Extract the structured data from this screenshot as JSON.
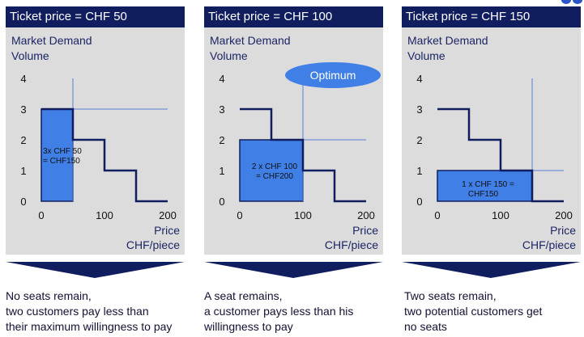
{
  "panels": [
    {
      "header": "Ticket price = CHF 50",
      "ylabel_line1": "Market Demand",
      "ylabel_line2": "Volume",
      "yticks": [
        "0",
        "1",
        "2",
        "3",
        "4"
      ],
      "xticks": [
        "0",
        "100",
        "200"
      ],
      "xlabel_line1": "Price",
      "xlabel_line2": "CHF/piece",
      "box_label_line1": "3x CHF 50",
      "box_label_line2": "= CHF150",
      "badge": "",
      "description": [
        "No seats remain,",
        "two customers pay less than",
        "their maximum willingness to pay"
      ]
    },
    {
      "header": "Ticket price = CHF 100",
      "ylabel_line1": "Market Demand",
      "ylabel_line2": "Volume",
      "yticks": [
        "0",
        "1",
        "2",
        "3",
        "4"
      ],
      "xticks": [
        "0",
        "100",
        "200"
      ],
      "xlabel_line1": "Price",
      "xlabel_line2": "CHF/piece",
      "box_label_line1": "2 x CHF 100",
      "box_label_line2": "= CHF200",
      "badge": "Optimum",
      "description": [
        "A seat remains,",
        "a customer pays less than his",
        "willingness to pay"
      ]
    },
    {
      "header": "Ticket price = CHF 150",
      "ylabel_line1": "Market Demand",
      "ylabel_line2": "Volume",
      "yticks": [
        "0",
        "1",
        "2",
        "3",
        "4"
      ],
      "xticks": [
        "0",
        "100",
        "200"
      ],
      "xlabel_line1": "Price",
      "xlabel_line2": "CHF/piece",
      "box_label_line1": "1 x CHF 150 =",
      "box_label_line2": "CHF150",
      "badge": "",
      "description": [
        "Two seats remain,",
        "two potential customers get",
        "no seats"
      ]
    }
  ],
  "chart_data": [
    {
      "type": "area",
      "title": "Ticket price = CHF 50",
      "xlabel": "Price CHF/piece",
      "ylabel": "Market Demand Volume",
      "xlim": [
        0,
        200
      ],
      "ylim": [
        0,
        4
      ],
      "demand_steps": [
        {
          "x": 0,
          "y": 3
        },
        {
          "x": 50,
          "y": 3
        },
        {
          "x": 50,
          "y": 2
        },
        {
          "x": 100,
          "y": 2
        },
        {
          "x": 100,
          "y": 1
        },
        {
          "x": 150,
          "y": 1
        },
        {
          "x": 150,
          "y": 0
        },
        {
          "x": 200,
          "y": 0
        }
      ],
      "ticket_price": 50,
      "quantity_sold": 3,
      "revenue": 150
    },
    {
      "type": "area",
      "title": "Ticket price = CHF 100",
      "xlabel": "Price CHF/piece",
      "ylabel": "Market Demand Volume",
      "xlim": [
        0,
        200
      ],
      "ylim": [
        0,
        4
      ],
      "demand_steps": [
        {
          "x": 0,
          "y": 3
        },
        {
          "x": 50,
          "y": 3
        },
        {
          "x": 50,
          "y": 2
        },
        {
          "x": 100,
          "y": 2
        },
        {
          "x": 100,
          "y": 1
        },
        {
          "x": 150,
          "y": 1
        },
        {
          "x": 150,
          "y": 0
        },
        {
          "x": 200,
          "y": 0
        }
      ],
      "ticket_price": 100,
      "quantity_sold": 2,
      "revenue": 200
    },
    {
      "type": "area",
      "title": "Ticket price = CHF 150",
      "xlabel": "Price CHF/piece",
      "ylabel": "Market Demand Volume",
      "xlim": [
        0,
        200
      ],
      "ylim": [
        0,
        4
      ],
      "demand_steps": [
        {
          "x": 0,
          "y": 3
        },
        {
          "x": 50,
          "y": 3
        },
        {
          "x": 50,
          "y": 2
        },
        {
          "x": 100,
          "y": 2
        },
        {
          "x": 100,
          "y": 1
        },
        {
          "x": 150,
          "y": 1
        },
        {
          "x": 150,
          "y": 0
        },
        {
          "x": 200,
          "y": 0
        }
      ],
      "ticket_price": 150,
      "quantity_sold": 1,
      "revenue": 150
    }
  ],
  "colors": {
    "header_bg": "#101e60",
    "panel_bg": "#dcdcdc",
    "revenue_fill": "#3f7fe6",
    "demand_line": "#101e60",
    "guide_line": "#5a7fd6"
  }
}
